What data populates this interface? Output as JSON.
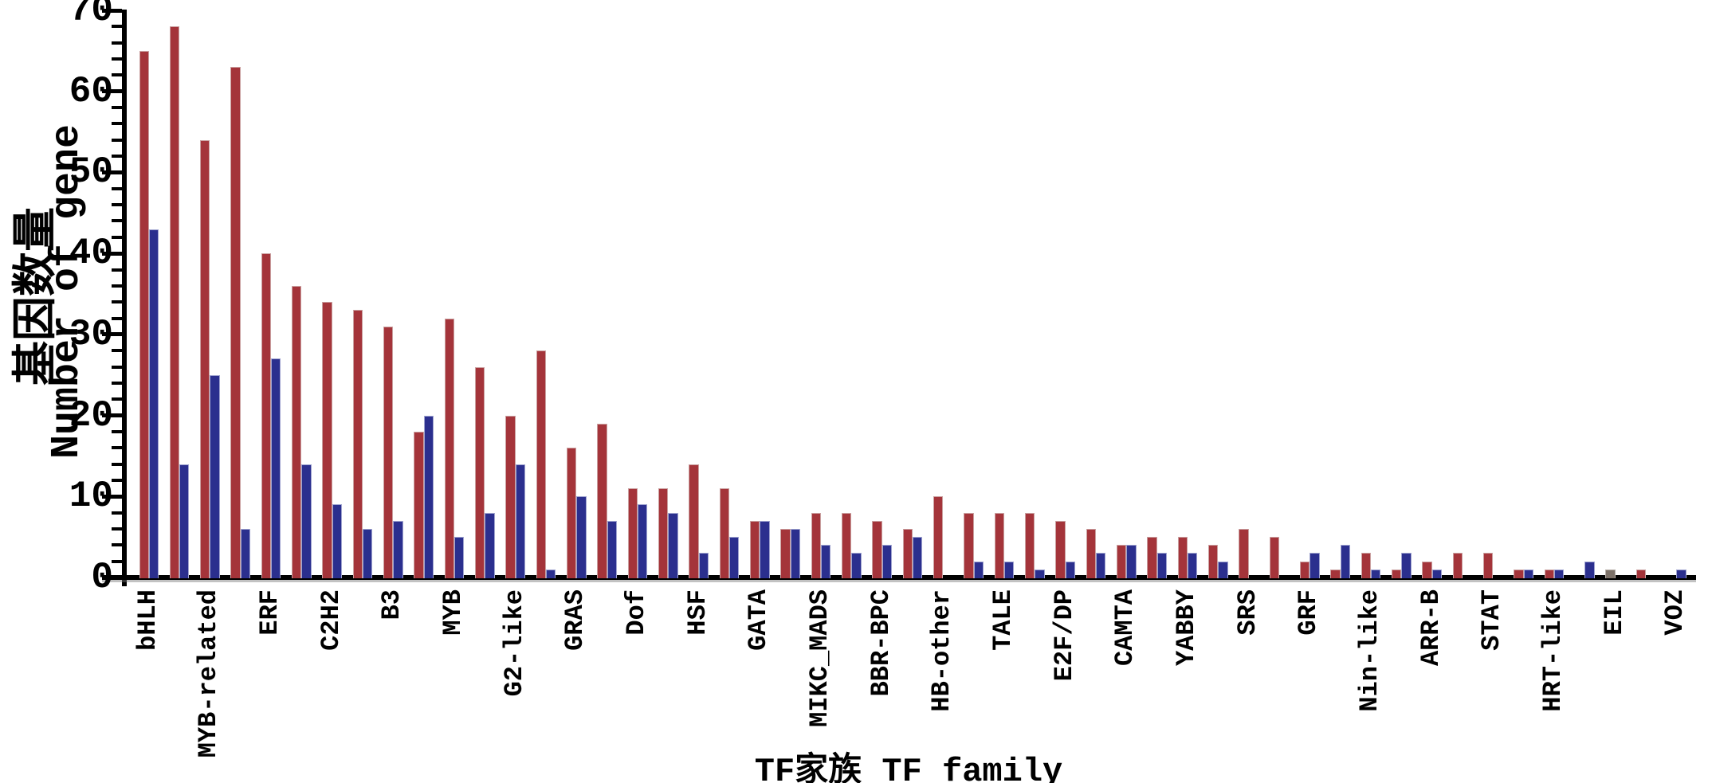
{
  "chart_data": {
    "type": "bar",
    "title": "",
    "ylabel_cn": "基因数量",
    "ylabel_en": "Number of gene",
    "xlabel": "TF家族 TF family",
    "ylim": [
      0,
      70
    ],
    "ytick_step": 10,
    "ytick_minor_step": 2,
    "grid": "off",
    "legend": "none",
    "series_colors": {
      "red": "#A4343A",
      "blue": "#2B2F8E",
      "gray": "#7C7168"
    },
    "series_names": [
      "red-series",
      "blue-series"
    ],
    "groups": [
      {
        "label": "bHLH",
        "red": 65,
        "blue": 43
      },
      {
        "label": "",
        "red": 68,
        "blue": 14
      },
      {
        "label": "MYB-related",
        "red": 54,
        "blue": 25
      },
      {
        "label": "",
        "red": 63,
        "blue": 6
      },
      {
        "label": "ERF",
        "red": 40,
        "blue": 27
      },
      {
        "label": "",
        "red": 36,
        "blue": 14
      },
      {
        "label": "C2H2",
        "red": 34,
        "blue": 9
      },
      {
        "label": "",
        "red": 33,
        "blue": 6
      },
      {
        "label": "B3",
        "red": 31,
        "blue": 7
      },
      {
        "label": "",
        "red": 18,
        "blue": 20
      },
      {
        "label": "MYB",
        "red": 32,
        "blue": 5
      },
      {
        "label": "",
        "red": 26,
        "blue": 8
      },
      {
        "label": "G2-like",
        "red": 20,
        "blue": 14
      },
      {
        "label": "",
        "red": 28,
        "blue": 1
      },
      {
        "label": "GRAS",
        "red": 16,
        "blue": 10
      },
      {
        "label": "",
        "red": 19,
        "blue": 7
      },
      {
        "label": "Dof",
        "red": 11,
        "blue": 9
      },
      {
        "label": "",
        "red": 11,
        "blue": 8
      },
      {
        "label": "HSF",
        "red": 14,
        "blue": 3
      },
      {
        "label": "",
        "red": 11,
        "blue": 5
      },
      {
        "label": "GATA",
        "red": 7,
        "blue": 7
      },
      {
        "label": "",
        "red": 6,
        "blue": 6
      },
      {
        "label": "MIKC_MADS",
        "red": 8,
        "blue": 4
      },
      {
        "label": "",
        "red": 8,
        "blue": 3
      },
      {
        "label": "BBR-BPC",
        "red": 7,
        "blue": 4
      },
      {
        "label": "",
        "red": 6,
        "blue": 5
      },
      {
        "label": "HB-other",
        "red": 10,
        "blue": 0
      },
      {
        "label": "",
        "red": 8,
        "blue": 2
      },
      {
        "label": "TALE",
        "red": 8,
        "blue": 2
      },
      {
        "label": "",
        "red": 8,
        "blue": 1
      },
      {
        "label": "E2F/DP",
        "red": 7,
        "blue": 2
      },
      {
        "label": "",
        "red": 6,
        "blue": 3
      },
      {
        "label": "CAMTA",
        "red": 4,
        "blue": 4
      },
      {
        "label": "",
        "red": 5,
        "blue": 3
      },
      {
        "label": "YABBY",
        "red": 5,
        "blue": 3
      },
      {
        "label": "",
        "red": 4,
        "blue": 2
      },
      {
        "label": "SRS",
        "red": 6,
        "blue": 0
      },
      {
        "label": "",
        "red": 5,
        "blue": 0
      },
      {
        "label": "GRF",
        "red": 2,
        "blue": 3
      },
      {
        "label": "",
        "red": 1,
        "blue": 4
      },
      {
        "label": "Nin-like",
        "red": 3,
        "blue": 1
      },
      {
        "label": "",
        "red": 1,
        "blue": 3
      },
      {
        "label": "ARR-B",
        "red": 2,
        "blue": 1
      },
      {
        "label": "",
        "red": 3,
        "blue": 0
      },
      {
        "label": "STAT",
        "red": 3,
        "blue": 0
      },
      {
        "label": "",
        "red": 1,
        "blue": 1
      },
      {
        "label": "HRT-like",
        "red": 1,
        "blue": 1
      },
      {
        "label": "",
        "red": 0,
        "blue": 2
      },
      {
        "label": "EIL",
        "red": 0,
        "blue": 0,
        "gray": 1
      },
      {
        "label": "",
        "red": 1,
        "blue": 0
      },
      {
        "label": "VOZ",
        "red": 0,
        "blue": 1
      }
    ]
  }
}
